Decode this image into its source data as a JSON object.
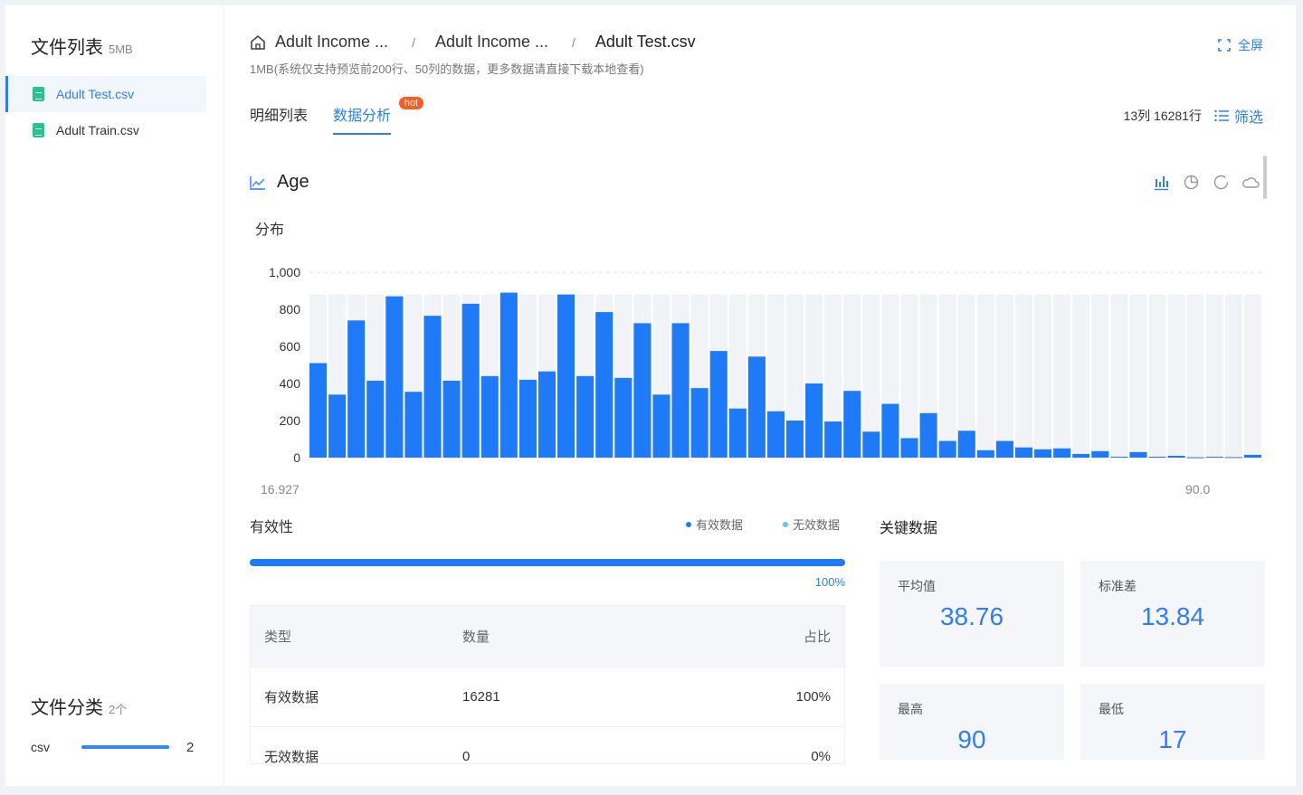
{
  "sidebar": {
    "title": "文件列表",
    "size": "5MB",
    "files": [
      {
        "name": "Adult Test.csv",
        "active": true
      },
      {
        "name": "Adult Train.csv",
        "active": false
      }
    ],
    "category_title": "文件分类",
    "category_count": "2个",
    "categories": [
      {
        "label": "csv",
        "count": "2"
      }
    ]
  },
  "header": {
    "breadcrumb": [
      "Adult Income ...",
      "Adult Income ...",
      "Adult Test.csv"
    ],
    "separator": "/",
    "note": "1MB(系统仅支持预览前200行、50列的数据，更多数据请直接下载本地查看)",
    "fullscreen": "全屏"
  },
  "tabs": [
    {
      "label": "明细列表",
      "active": false
    },
    {
      "label": "数据分析",
      "active": true,
      "badge": "hot"
    }
  ],
  "meta": {
    "dims": "13列 16281行",
    "filter": "筛选"
  },
  "column": {
    "name": "Age",
    "distribution_label": "分布",
    "x_min_label": "16.927",
    "x_max_label": "90.0"
  },
  "chart_data": {
    "type": "bar",
    "title": "",
    "xlabel": "",
    "ylabel": "",
    "ylim": [
      0,
      1000
    ],
    "yticks": [
      "1,000",
      "800",
      "600",
      "400",
      "200",
      "0"
    ],
    "x_range_labels": [
      "16.927",
      "90.0"
    ],
    "values": [
      510,
      340,
      740,
      415,
      870,
      355,
      765,
      415,
      830,
      440,
      890,
      420,
      465,
      880,
      440,
      785,
      430,
      725,
      340,
      725,
      375,
      575,
      265,
      545,
      250,
      200,
      400,
      195,
      360,
      140,
      290,
      105,
      240,
      90,
      145,
      40,
      90,
      55,
      45,
      50,
      20,
      35,
      5,
      30,
      5,
      10,
      2,
      5,
      3,
      15
    ],
    "grid": true,
    "bar_color": "#1f7af7"
  },
  "validity": {
    "title": "有效性",
    "legend": [
      {
        "label": "有效数据",
        "color": "#1f7af7"
      },
      {
        "label": "无效数据",
        "color": "#5cc7ff"
      }
    ],
    "valid_fraction": 1.0,
    "percent_label": "100%",
    "table": {
      "headers": [
        "类型",
        "数量",
        "占比"
      ],
      "rows": [
        [
          "有效数据",
          "16281",
          "100%"
        ],
        [
          "无效数据",
          "0",
          "0%"
        ]
      ]
    }
  },
  "key_data": {
    "title": "关键数据",
    "cards": [
      {
        "label": "平均值",
        "value": "38.76"
      },
      {
        "label": "标准差",
        "value": "13.84"
      },
      {
        "label": "最高",
        "value": "90"
      },
      {
        "label": "最低",
        "value": "17"
      }
    ]
  },
  "colors": {
    "accent": "#2f7ef8",
    "bar": "#1f7af7",
    "hot": "#ff5a1f",
    "file_icon": "#2cc28f"
  }
}
